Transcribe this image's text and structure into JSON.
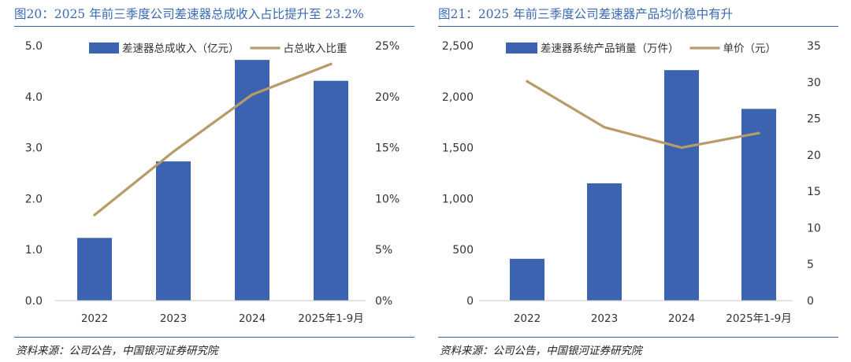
{
  "colors": {
    "bar": "#3b63b0",
    "line": "#b79b69",
    "title": "#3b6ab5",
    "rule": "#3b5fa0",
    "text": "#333333"
  },
  "panels": [
    {
      "title": "图20：2025 年前三季度公司差速器总成收入占比提升至 23.2%",
      "source": "资料来源：公司公告，中国银河证券研究院"
    },
    {
      "title": "图21：2025 年前三季度公司差速器产品均价稳中有升",
      "source": "资料来源：公司公告，中国银河证券研究院"
    }
  ],
  "chart_data": [
    {
      "type": "bar",
      "categories": [
        "2022",
        "2023",
        "2024",
        "2025年1-9月"
      ],
      "series": [
        {
          "name": "差速器总成收入（亿元）",
          "kind": "bar",
          "axis": "left",
          "values": [
            1.23,
            2.73,
            4.72,
            4.31
          ]
        },
        {
          "name": "占总收入比重",
          "kind": "line",
          "axis": "right",
          "values": [
            8.4,
            14.6,
            20.2,
            23.2
          ]
        }
      ],
      "left_axis": {
        "ylim": [
          0,
          5
        ],
        "ticks": [
          "0.0",
          "1.0",
          "2.0",
          "3.0",
          "4.0",
          "5.0"
        ]
      },
      "right_axis": {
        "ylim": [
          0,
          25
        ],
        "ticks": [
          "0%",
          "5%",
          "10%",
          "15%",
          "20%",
          "25%"
        ]
      },
      "legend": "top-center"
    },
    {
      "type": "bar",
      "categories": [
        "2022",
        "2023",
        "2024",
        "2025年1-9月"
      ],
      "series": [
        {
          "name": "差速器系统产品销量（万件）",
          "kind": "bar",
          "axis": "left",
          "values": [
            410,
            1150,
            2260,
            1880
          ]
        },
        {
          "name": "单价（元）",
          "kind": "line",
          "axis": "right",
          "values": [
            30.1,
            23.8,
            21.0,
            23.0
          ]
        }
      ],
      "left_axis": {
        "ylim": [
          0,
          2500
        ],
        "ticks": [
          "0",
          "500",
          "1,000",
          "1,500",
          "2,000",
          "2,500"
        ]
      },
      "right_axis": {
        "ylim": [
          0,
          35
        ],
        "ticks": [
          "0",
          "5",
          "10",
          "15",
          "20",
          "25",
          "30",
          "35"
        ]
      },
      "legend": "top-center"
    }
  ]
}
